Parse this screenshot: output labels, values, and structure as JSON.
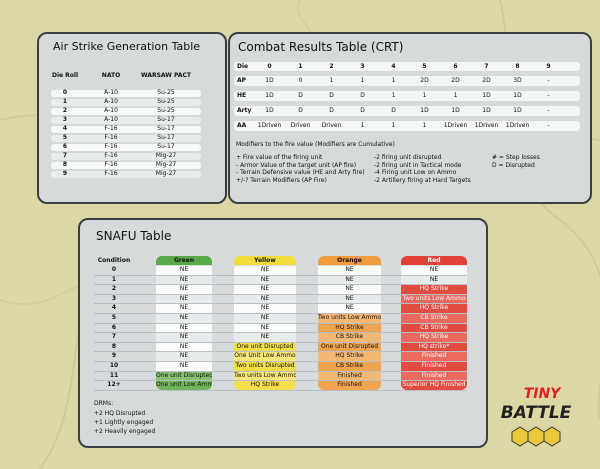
{
  "air_strike_table": {
    "title": "Air Strike Generation Table",
    "headers": [
      "Die Roll",
      "NATO",
      "WARSAW PACT"
    ],
    "rows": [
      [
        "0",
        "A-10",
        "Su-25"
      ],
      [
        "1",
        "A-10",
        "Su-25"
      ],
      [
        "2",
        "A-10",
        "Su-25"
      ],
      [
        "3",
        "A-10",
        "Su-17"
      ],
      [
        "4",
        "F-16",
        "Su-17"
      ],
      [
        "5",
        "F-16",
        "Su-17"
      ],
      [
        "6",
        "F-16",
        "Su-17"
      ],
      [
        "7",
        "F-16",
        "Mig-27"
      ],
      [
        "8",
        "F-16",
        "Mig-27"
      ],
      [
        "9",
        "F-16",
        "Mig-27"
      ]
    ]
  },
  "crt": {
    "title": "Combat Results Table (CRT)",
    "headers": [
      "Die",
      "0",
      "1",
      "2",
      "3",
      "4",
      "5",
      "6",
      "7",
      "8",
      "9"
    ],
    "rows": [
      [
        "AP",
        "1D",
        "0",
        "1",
        "1",
        "1",
        "2D",
        "2D",
        "2D",
        "3D",
        "-"
      ],
      [
        "HE",
        "1D",
        "D",
        "D",
        "D",
        "1",
        "1",
        "1",
        "1D",
        "1D",
        "-"
      ],
      [
        "Arty",
        "1D",
        "D",
        "D",
        "D",
        "D",
        "1D",
        "1D",
        "1D",
        "1D",
        "-"
      ],
      [
        "AA",
        "1Driven",
        "Driven",
        "Driven",
        "1",
        "1",
        "1",
        "1Driven",
        "1Driven",
        "1Driven",
        "-"
      ]
    ],
    "modifiers_title": "Modifiers to the fire value (Modifiers are Cumulative)",
    "modifiers": [
      [
        "+ Fire value of the firing unit",
        "- Armor Value of the target unit (AP fire)",
        "- Terrain Defensive value (HE and Arty fire)",
        "+/-? Terrain Modifiers (AP Fire)"
      ],
      [
        "-2 firing unit disrupted",
        "-2 firing unit in Tactical mode",
        "-4 Firing unit Low on Ammo",
        "-2 Artillery firing at Hard Targets"
      ],
      [
        "# = Step losses",
        "D = Disrupted"
      ]
    ]
  },
  "snafu": {
    "title": "SNAFU Table",
    "headers": [
      "Condition",
      "Green",
      "Yellow",
      "Orange",
      "Red"
    ],
    "rows": [
      [
        "0",
        "NE",
        "NE",
        "NE",
        "NE"
      ],
      [
        "1",
        "NE",
        "NE",
        "NE",
        "NE"
      ],
      [
        "2",
        "NE",
        "NE",
        "NE",
        "HQ Strike"
      ],
      [
        "3",
        "NE",
        "NE",
        "NE",
        "Two units Low Ammo"
      ],
      [
        "4",
        "NE",
        "NE",
        "NE",
        "HQ Strike"
      ],
      [
        "5",
        "NE",
        "NE",
        "Two units Low Ammo",
        "CB Strike"
      ],
      [
        "6",
        "NE",
        "NE",
        "HQ Strike",
        "CB Strike"
      ],
      [
        "7",
        "NE",
        "NE",
        "CB Strike",
        "HQ Strike"
      ],
      [
        "8",
        "NE",
        "One unit Disrupted",
        "One unit Disrupted",
        "HQ strike*"
      ],
      [
        "9",
        "NE",
        "One Unit Low Ammo",
        "HQ Strike",
        "Finished"
      ],
      [
        "10",
        "NE",
        "Two units Disrupted",
        "CB Strike",
        "Finished"
      ],
      [
        "11",
        "One unit Disrupted",
        "Two units Low Ammo",
        "Finished",
        "Finished"
      ],
      [
        "12+",
        "One unit Low Ammo",
        "HQ Strike",
        "Finished",
        "Superior HQ Finished"
      ]
    ],
    "drms_title": "DRMs:",
    "drms": [
      "+2 HQ Disrupted",
      "+1 Lightly engaged",
      "+2 Heavily engaged"
    ]
  },
  "logo": {
    "line1": "TINY",
    "line2": "BATTLE"
  }
}
